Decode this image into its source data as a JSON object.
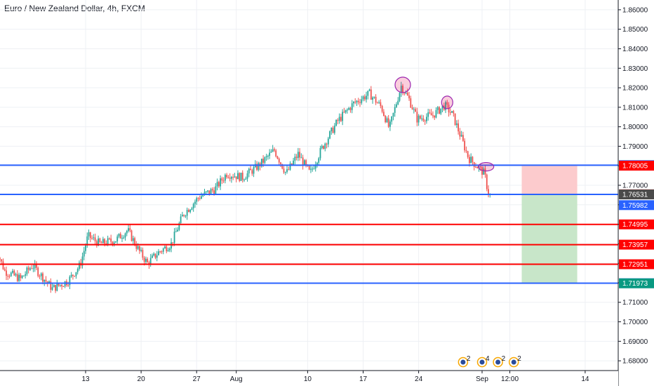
{
  "header": {
    "title": "Euro / New Zealand Dollar, 4h, FXCM"
  },
  "colors": {
    "up": "#26a69a",
    "down": "#ef5350",
    "blue_line": "#2962ff",
    "red_line": "#ff0000",
    "grid": "#eef0f4",
    "axis_border": "#131722",
    "tag_blue": "#2962ff",
    "tag_red": "#ff0000",
    "tag_dark": "#4a4a4a",
    "tag_orange": "#ff5252",
    "tag_green": "#089981",
    "stop_zone": "#fccbcd",
    "target_zone": "#c8e6c9"
  },
  "chart_data": {
    "type": "candlestick",
    "title": "Euro / New Zealand Dollar, 4h, FXCM",
    "ylim": [
      1.675,
      1.865
    ],
    "grid": true,
    "y_ticks": [
      1.68,
      1.69,
      1.7,
      1.71,
      1.72,
      1.73,
      1.74,
      1.75,
      1.76,
      1.77,
      1.78,
      1.79,
      1.8,
      1.81,
      1.82,
      1.83,
      1.84,
      1.85,
      1.86
    ],
    "y_tick_labels": [
      "1.68000",
      "1.69000",
      "1.70000",
      "1.71000",
      "1.72000",
      "1.73000",
      "1.74000",
      "1.75000",
      "1.76000",
      "1.77000",
      "1.78000",
      "1.79000",
      "1.80000",
      "1.81000",
      "1.82000",
      "1.83000",
      "1.84000",
      "1.85000",
      "1.86000"
    ],
    "x_labels": [
      "13",
      "20",
      "27",
      "Aug",
      "10",
      "17",
      "24",
      "Sep",
      "12:00",
      "14"
    ],
    "x_label_days": [
      13,
      20,
      27,
      32,
      41,
      48,
      55,
      63,
      66.5,
      76
    ],
    "x_range_days": [
      1.6,
      78
    ],
    "price_path": [
      {
        "day": 1.6,
        "price": 1.741
      },
      {
        "day": 3,
        "price": 1.726
      },
      {
        "day": 5,
        "price": 1.722
      },
      {
        "day": 6.5,
        "price": 1.729
      },
      {
        "day": 9,
        "price": 1.717
      },
      {
        "day": 11,
        "price": 1.721
      },
      {
        "day": 12.5,
        "price": 1.729
      },
      {
        "day": 13.5,
        "price": 1.744
      },
      {
        "day": 15,
        "price": 1.74
      },
      {
        "day": 17,
        "price": 1.742
      },
      {
        "day": 18.5,
        "price": 1.747
      },
      {
        "day": 20,
        "price": 1.736
      },
      {
        "day": 21,
        "price": 1.73
      },
      {
        "day": 22.5,
        "price": 1.736
      },
      {
        "day": 24,
        "price": 1.74
      },
      {
        "day": 25.5,
        "price": 1.755
      },
      {
        "day": 27.5,
        "price": 1.764
      },
      {
        "day": 29.5,
        "price": 1.768
      },
      {
        "day": 31,
        "price": 1.776
      },
      {
        "day": 33,
        "price": 1.774
      },
      {
        "day": 35,
        "price": 1.78
      },
      {
        "day": 37,
        "price": 1.788
      },
      {
        "day": 38.5,
        "price": 1.776
      },
      {
        "day": 40,
        "price": 1.786
      },
      {
        "day": 41.5,
        "price": 1.776
      },
      {
        "day": 43,
        "price": 1.789
      },
      {
        "day": 45,
        "price": 1.803
      },
      {
        "day": 47,
        "price": 1.812
      },
      {
        "day": 49,
        "price": 1.817
      },
      {
        "day": 50.5,
        "price": 1.81
      },
      {
        "day": 51.5,
        "price": 1.799
      },
      {
        "day": 53,
        "price": 1.821
      },
      {
        "day": 54,
        "price": 1.814
      },
      {
        "day": 55,
        "price": 1.804
      },
      {
        "day": 57,
        "price": 1.806
      },
      {
        "day": 58.5,
        "price": 1.811
      },
      {
        "day": 59.5,
        "price": 1.806
      },
      {
        "day": 60.5,
        "price": 1.795
      },
      {
        "day": 61.5,
        "price": 1.784
      },
      {
        "day": 62.5,
        "price": 1.78
      },
      {
        "day": 63.5,
        "price": 1.776
      },
      {
        "day": 64,
        "price": 1.7654
      }
    ],
    "horizontal_levels": [
      {
        "price": 1.78032,
        "label": "1.78032",
        "color": "blue"
      },
      {
        "price": 1.76531,
        "label": "1.76531",
        "color": "blue"
      },
      {
        "price": 1.74995,
        "label": "1.74995",
        "color": "red"
      },
      {
        "price": 1.73957,
        "label": "1.73957",
        "color": "red"
      },
      {
        "price": 1.72951,
        "label": "1.72951",
        "color": "red"
      },
      {
        "price": 1.71978,
        "label": "1.71978",
        "color": "blue"
      }
    ],
    "price_tags": [
      {
        "price": 1.78032,
        "label": "1.78032",
        "color": "blue"
      },
      {
        "price": 1.78005,
        "label": "1.78005",
        "color": "red"
      },
      {
        "price": 1.7654,
        "label": "1.76540",
        "color": "orange"
      },
      {
        "price": 1.76531,
        "label": "1.76531",
        "color": "dark"
      },
      {
        "price": 1.75982,
        "label": "1.75982",
        "color": "blue"
      },
      {
        "price": 1.74995,
        "label": "1.74995",
        "color": "red"
      },
      {
        "price": 1.73957,
        "label": "1.73957",
        "color": "red"
      },
      {
        "price": 1.72951,
        "label": "1.72951",
        "color": "red"
      },
      {
        "price": 1.71978,
        "label": "1.71978",
        "color": "blue"
      },
      {
        "price": 1.71973,
        "label": "1.71973",
        "color": "green"
      }
    ],
    "last_price": 1.7654,
    "position": {
      "type": "short",
      "entry": 1.7654,
      "stop": 1.78005,
      "target": 1.71973,
      "start_day": 68,
      "end_day": 75
    },
    "markers": [
      {
        "day": 53,
        "price": 1.8215,
        "size": "large"
      },
      {
        "day": 58.6,
        "price": 1.8125,
        "size": "medium"
      },
      {
        "day": 63.5,
        "price": 1.7795,
        "size": "small"
      }
    ],
    "events": [
      {
        "day": 60.6,
        "count": "2"
      },
      {
        "day": 63.0,
        "count": "4"
      },
      {
        "day": 65.0,
        "count": "2"
      },
      {
        "day": 67.0,
        "count": "2"
      }
    ]
  }
}
